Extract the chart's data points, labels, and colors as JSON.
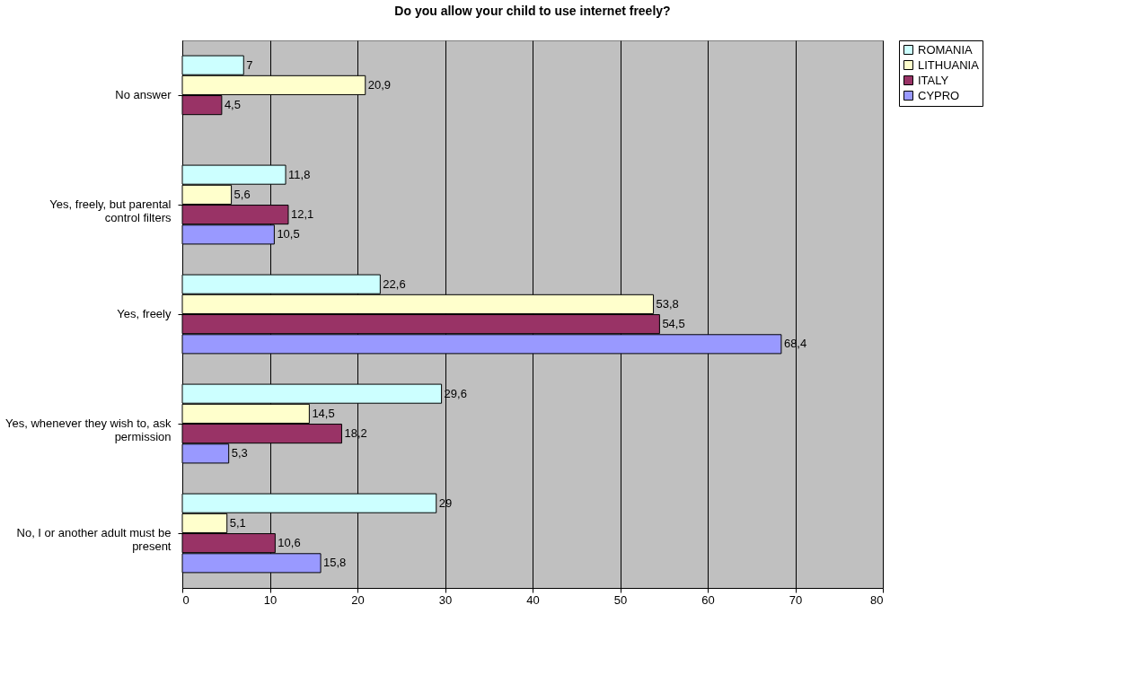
{
  "chart_data": {
    "type": "bar",
    "orientation": "horizontal",
    "title": "Do you allow your child to use internet freely?",
    "categories": [
      "No answer",
      "Yes, freely, but parental control filters",
      "Yes, freely",
      "Yes, whenever they wish to, ask permission",
      "No, I or another adult must be present"
    ],
    "series": [
      {
        "name": "ROMANIA",
        "color": "#ccffff",
        "values": [
          7,
          11.8,
          22.6,
          29.6,
          29
        ],
        "value_labels": [
          "7",
          "11,8",
          "22,6",
          "29,6",
          "29"
        ]
      },
      {
        "name": "LITHUANIA",
        "color": "#ffffcc",
        "values": [
          20.9,
          5.6,
          53.8,
          14.5,
          5.1
        ],
        "value_labels": [
          "20,9",
          "5,6",
          "53,8",
          "14,5",
          "5,1"
        ]
      },
      {
        "name": "ITALY",
        "color": "#993366",
        "values": [
          4.5,
          12.1,
          54.5,
          18.2,
          10.6
        ],
        "value_labels": [
          "4,5",
          "12,1",
          "54,5",
          "18,2",
          "10,6"
        ]
      },
      {
        "name": "CYPRO",
        "color": "#9999ff",
        "values": [
          null,
          10.5,
          68.4,
          5.3,
          15.8
        ],
        "value_labels": [
          null,
          "10,5",
          "68,4",
          "5,3",
          "15,8"
        ]
      }
    ],
    "xlim": [
      0,
      80
    ],
    "xticks": [
      0,
      10,
      20,
      30,
      40,
      50,
      60,
      70,
      80
    ],
    "grid": "x",
    "legend": "right"
  }
}
